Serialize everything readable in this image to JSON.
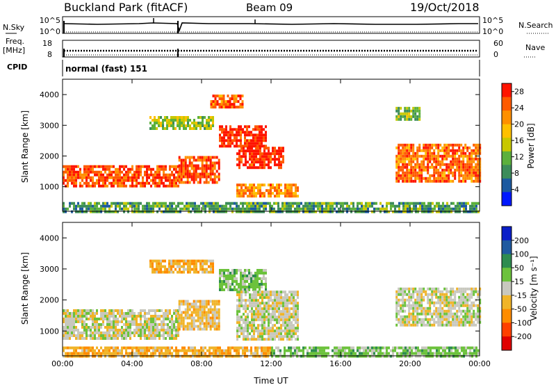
{
  "header": {
    "site": "Buckland Park (fitACF)",
    "beam": "Beam 09",
    "date": "19/Oct/2018"
  },
  "strips": {
    "nsky": {
      "label": "N.Sky",
      "ticks": [
        "10^5",
        "10^0"
      ],
      "right_label": "N.Search",
      "right_ticks": [
        "10^5",
        "10^0"
      ]
    },
    "freq": {
      "label_top": "Freq.",
      "label_unit": "[MHz]",
      "ticks": [
        "18",
        "8"
      ],
      "right_label": "Nave",
      "right_ticks": [
        "60",
        "0"
      ]
    },
    "cpid": {
      "label": "CPID",
      "value": "normal (fast) 151"
    }
  },
  "time_axis": {
    "label": "Time UT",
    "ticks": [
      "00:00",
      "04:00",
      "08:00",
      "12:00",
      "16:00",
      "20:00",
      "00:00"
    ]
  },
  "colors": {
    "power": [
      "#0018ff",
      "#1c5aa0",
      "#3c8c5a",
      "#5cb03c",
      "#c8c800",
      "#ffc000",
      "#ff9000",
      "#ff5a00",
      "#ff1400"
    ],
    "velocity_gray": "#c8c8be"
  },
  "chart_data": [
    {
      "type": "heatmap",
      "title": "Power",
      "ylabel": "Slant Range [km]",
      "xlabel": "",
      "xlim": [
        "00:00",
        "00:00"
      ],
      "ylim": [
        200,
        4500
      ],
      "yticks": [
        "1000",
        "2000",
        "3000",
        "4000"
      ],
      "colorbar": {
        "label": "Power [dB]",
        "ticks": [
          "4",
          "8",
          "12",
          "16",
          "20",
          "24",
          "28"
        ],
        "range": [
          0,
          30
        ]
      },
      "regions": [
        {
          "t_start": "00:00",
          "t_end": "06:40",
          "range_km": [
            1000,
            1700
          ],
          "power_db": 26
        },
        {
          "t_start": "06:40",
          "t_end": "09:00",
          "range_km": [
            1100,
            2000
          ],
          "power_db": 26
        },
        {
          "t_start": "05:00",
          "t_end": "08:40",
          "range_km": [
            2900,
            3300
          ],
          "power_db": 14
        },
        {
          "t_start": "08:30",
          "t_end": "10:20",
          "range_km": [
            3600,
            4000
          ],
          "power_db": 24
        },
        {
          "t_start": "09:00",
          "t_end": "11:40",
          "range_km": [
            2300,
            3000
          ],
          "power_db": 28
        },
        {
          "t_start": "10:00",
          "t_end": "12:40",
          "range_km": [
            1600,
            2300
          ],
          "power_db": 28
        },
        {
          "t_start": "10:00",
          "t_end": "13:30",
          "range_km": [
            700,
            1100
          ],
          "power_db": 22
        },
        {
          "t_start": "19:10",
          "t_end": "24:00",
          "range_km": [
            1200,
            2400
          ],
          "power_db": 24
        },
        {
          "t_start": "19:10",
          "t_end": "20:30",
          "range_km": [
            3200,
            3600
          ],
          "power_db": 12
        },
        {
          "t_start": "00:00",
          "t_end": "24:00",
          "range_km": [
            200,
            500
          ],
          "power_db": 10
        }
      ]
    },
    {
      "type": "heatmap",
      "title": "Velocity",
      "ylabel": "Slant Range [km]",
      "xlabel": "Time UT",
      "xlim": [
        "00:00",
        "00:00"
      ],
      "ylim": [
        200,
        4500
      ],
      "yticks": [
        "1000",
        "2000",
        "3000",
        "4000"
      ],
      "colorbar": {
        "label": "Velocity [m s⁻¹]",
        "ticks": [
          "200",
          "100",
          "50",
          "15",
          "-15",
          "-50",
          "-100",
          "-200"
        ],
        "range": [
          -250,
          250
        ]
      },
      "regions": [
        {
          "t_start": "00:00",
          "t_end": "06:40",
          "range_km": [
            800,
            1700
          ],
          "velocity": 0
        },
        {
          "t_start": "06:40",
          "t_end": "09:00",
          "range_km": [
            1100,
            2000
          ],
          "velocity": -30
        },
        {
          "t_start": "05:00",
          "t_end": "08:40",
          "range_km": [
            2900,
            3300
          ],
          "velocity": -40
        },
        {
          "t_start": "09:00",
          "t_end": "11:40",
          "range_km": [
            2300,
            3000
          ],
          "velocity": 30
        },
        {
          "t_start": "10:00",
          "t_end": "13:30",
          "range_km": [
            700,
            2300
          ],
          "velocity": 0
        },
        {
          "t_start": "19:10",
          "t_end": "24:00",
          "range_km": [
            1200,
            2400
          ],
          "velocity": 0
        },
        {
          "t_start": "12:00",
          "t_end": "24:00",
          "range_km": [
            200,
            500
          ],
          "velocity": 30
        },
        {
          "t_start": "00:00",
          "t_end": "12:00",
          "range_km": [
            200,
            500
          ],
          "velocity": -40
        }
      ]
    }
  ]
}
